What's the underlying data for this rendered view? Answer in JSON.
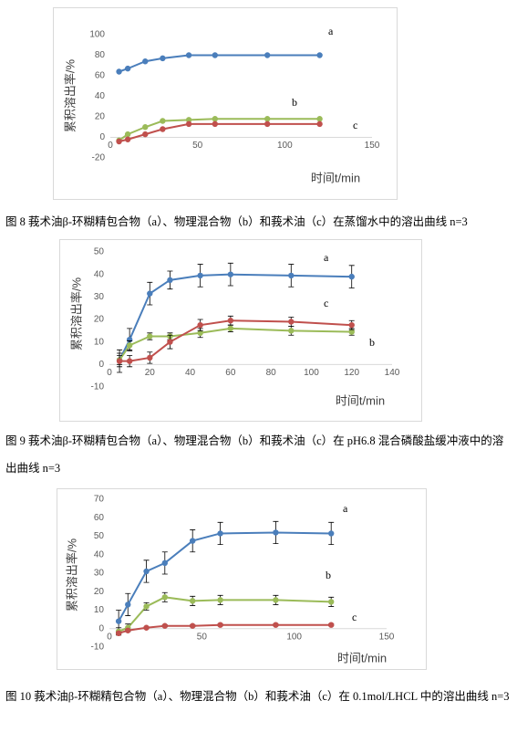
{
  "chart_data": [
    {
      "type": "line",
      "caption": "图 8  莪术油β-环糊精包合物（a）、物理混合物（b）和莪术油（c）在蒸馏水中的溶出曲线  n=3",
      "x_label": "时间t/min",
      "y_label": "累积溶出率/%",
      "x": [
        5,
        10,
        20,
        30,
        45,
        60,
        90,
        120
      ],
      "xlim": [
        0,
        150
      ],
      "xticks": [
        0,
        50,
        100,
        150
      ],
      "ylim": [
        -20,
        100
      ],
      "yticks": [
        -20,
        0,
        20,
        40,
        60,
        80,
        100
      ],
      "series": [
        {
          "name": "a",
          "color": "#4a7ebb",
          "values": [
            64,
            67,
            74,
            77,
            80,
            80,
            80,
            80
          ]
        },
        {
          "name": "b",
          "color": "#9bbb59",
          "values": [
            -3,
            3,
            10,
            16,
            17,
            18,
            18,
            18
          ]
        },
        {
          "name": "c",
          "color": "#c0504d",
          "values": [
            -4,
            -2,
            3,
            8,
            13,
            13,
            13,
            13
          ]
        }
      ]
    },
    {
      "type": "line",
      "caption": "图 9  莪术油β-环糊精包合物（a）、物理混合物（b）和莪术油（c）在 pH6.8 混合磷酸盐缓冲液中的溶出曲线  n=3",
      "x_label": "时间t/min",
      "y_label": "累积溶出率/%",
      "x": [
        5,
        10,
        20,
        30,
        45,
        60,
        90,
        120
      ],
      "xlim": [
        0,
        140
      ],
      "xticks": [
        0,
        20,
        40,
        60,
        80,
        100,
        120,
        140
      ],
      "ylim": [
        -10,
        50
      ],
      "yticks": [
        -10,
        0,
        10,
        20,
        30,
        40,
        50
      ],
      "series": [
        {
          "name": "a",
          "color": "#4a7ebb",
          "values": [
            2,
            11,
            31.5,
            37.5,
            39.5,
            40,
            39.5,
            39
          ],
          "errors": [
            3,
            5,
            5,
            4,
            5,
            5,
            5,
            5
          ]
        },
        {
          "name": "b",
          "color": "#9bbb59",
          "values": [
            2,
            8.5,
            12.5,
            12.5,
            14,
            16,
            15,
            14.5
          ],
          "errors": [
            2,
            2,
            1.5,
            1.5,
            2,
            1.5,
            2,
            1.5
          ]
        },
        {
          "name": "c",
          "color": "#c0504d",
          "values": [
            1.5,
            1.5,
            3,
            10,
            17.5,
            19.5,
            19,
            17.5
          ],
          "errors": [
            5,
            2.5,
            2.5,
            3,
            2.5,
            2,
            2,
            2
          ]
        }
      ]
    },
    {
      "type": "line",
      "caption": "图 10  莪术油β-环糊精包合物（a）、物理混合物（b）和莪术油（c）在 0.1mol/LHCL 中的溶出曲线  n=3",
      "x_label": "时间t/min",
      "y_label": "累积溶出率/%",
      "x": [
        5,
        10,
        20,
        30,
        45,
        60,
        90,
        120
      ],
      "xlim": [
        0,
        150
      ],
      "xticks": [
        0,
        50,
        100,
        150
      ],
      "ylim": [
        -10,
        70
      ],
      "yticks": [
        -10,
        0,
        10,
        20,
        30,
        40,
        50,
        60,
        70
      ],
      "series": [
        {
          "name": "a",
          "color": "#4a7ebb",
          "values": [
            4,
            13,
            31,
            35.5,
            47.5,
            51.5,
            52,
            51.5
          ],
          "errors": [
            6,
            6,
            6,
            6,
            6,
            6,
            6,
            6
          ]
        },
        {
          "name": "b",
          "color": "#9bbb59",
          "values": [
            -1.5,
            0.5,
            12,
            17,
            15,
            15.5,
            15.5,
            14.5
          ],
          "errors": [
            2,
            2,
            2,
            2.5,
            2.5,
            2.5,
            2.5,
            2.5
          ]
        },
        {
          "name": "c",
          "color": "#c0504d",
          "values": [
            -2.5,
            -1,
            0.5,
            1.5,
            1.5,
            2,
            2,
            2
          ],
          "errors": [
            0.5,
            0.5,
            0.5,
            0.5,
            0.5,
            0.5,
            0.5,
            0.5
          ]
        }
      ]
    }
  ]
}
